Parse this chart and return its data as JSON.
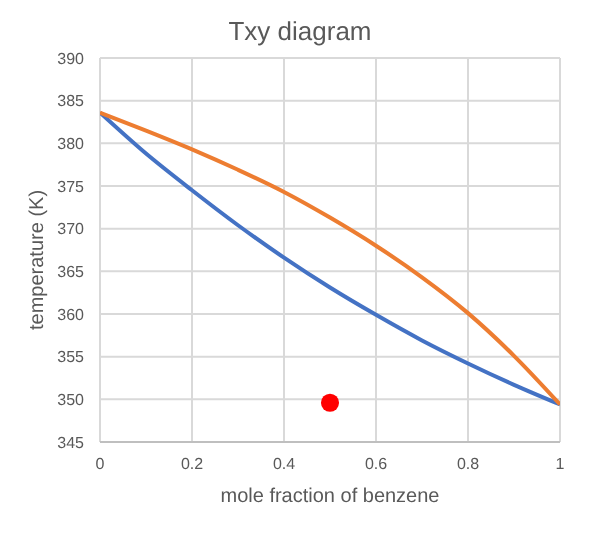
{
  "chart_data": {
    "type": "line",
    "title": "Txy diagram",
    "xlabel": "mole fraction of benzene",
    "ylabel": "temperature (K)",
    "x": [
      0,
      0.1,
      0.2,
      0.3,
      0.4,
      0.5,
      0.6,
      0.7,
      0.8,
      0.9,
      1
    ],
    "series": [
      {
        "color": "#4472c4",
        "values": [
          383.6,
          378.8,
          374.5,
          370.4,
          366.6,
          363.1,
          359.9,
          356.9,
          354.2,
          351.7,
          349.4
        ]
      },
      {
        "color": "#ed7d31",
        "values": [
          383.6,
          381.5,
          379.3,
          376.9,
          374.3,
          371.3,
          368.0,
          364.3,
          360.1,
          355.1,
          349.4
        ]
      },
      {
        "type": "scatter",
        "color": "#ff0000",
        "x": [
          0.5
        ],
        "values": [
          349.6
        ],
        "marker": "circle"
      }
    ],
    "xlim": [
      0,
      1
    ],
    "xticks": [
      0,
      0.2,
      0.4,
      0.6,
      0.8,
      1
    ],
    "ylim": [
      345,
      390
    ],
    "yticks": [
      345,
      350,
      355,
      360,
      365,
      370,
      375,
      380,
      385,
      390
    ],
    "grid": true,
    "marker": "none"
  }
}
